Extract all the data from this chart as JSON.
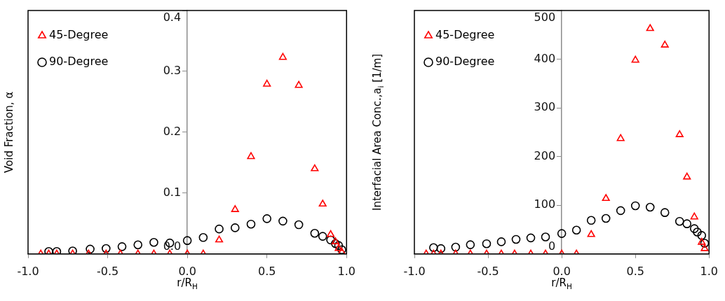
{
  "chart_data": [
    {
      "type": "scatter",
      "xlabel": "r/R$_{H}$",
      "ylabel": "Void Fraction, α",
      "xlim": [
        -1,
        1
      ],
      "ylim": [
        0,
        0.4
      ],
      "xticks": [
        {
          "value": -1,
          "label": "-1.0"
        },
        {
          "value": -0.5,
          "label": "-0.5"
        },
        {
          "value": 0,
          "label": "0.0"
        },
        0.5,
        {
          "value": 1,
          "label": "1.0"
        }
      ],
      "yticks": [
        {
          "value": 0,
          "label": "0.0"
        },
        0.1,
        0.2,
        0.3,
        0.4
      ],
      "grid": false,
      "legend": "top left",
      "series": [
        {
          "name": "45-Degree",
          "color": "#ff0000",
          "marker": "triangle",
          "x": [
            -0.92,
            -0.87,
            -0.82,
            -0.72,
            -0.62,
            -0.51,
            -0.42,
            -0.31,
            -0.21,
            -0.11,
            0,
            0.1,
            0.2,
            0.3,
            0.4,
            0.5,
            0.6,
            0.7,
            0.8,
            0.85,
            0.9,
            0.93,
            0.95,
            0.97
          ],
          "values": [
            0,
            0,
            0,
            0,
            0,
            0,
            0,
            0,
            0,
            0,
            0,
            0,
            0.023,
            0.073,
            0.16,
            0.279,
            0.323,
            0.277,
            0.14,
            0.082,
            0.032,
            0.02,
            0.009,
            0.003
          ]
        },
        {
          "name": "90-Degree",
          "color": "#000000",
          "marker": "circle",
          "x": [
            -0.87,
            -0.82,
            -0.72,
            -0.61,
            -0.51,
            -0.41,
            -0.31,
            -0.21,
            -0.11,
            0,
            0.1,
            0.2,
            0.3,
            0.4,
            0.5,
            0.6,
            0.7,
            0.8,
            0.85,
            0.9,
            0.93,
            0.95,
            0.97
          ],
          "values": [
            0.004,
            0.004,
            0.005,
            0.008,
            0.009,
            0.012,
            0.015,
            0.019,
            0.018,
            0.022,
            0.027,
            0.041,
            0.043,
            0.049,
            0.058,
            0.054,
            0.048,
            0.034,
            0.029,
            0.023,
            0.017,
            0.014,
            0.007
          ]
        }
      ]
    },
    {
      "type": "scatter",
      "xlabel": "r/R$_{H}$",
      "ylabel": "Interfacial Area Conc.,a$_{i}$ [1/m]",
      "xlim": [
        -1,
        1
      ],
      "ylim": [
        0,
        500
      ],
      "xticks": [
        {
          "value": -1,
          "label": "-1.0"
        },
        {
          "value": -0.5,
          "label": "-0.5"
        },
        {
          "value": 0,
          "label": "0.0"
        },
        0.5,
        {
          "value": 1,
          "label": "1.0"
        }
      ],
      "yticks": [
        0,
        100,
        200,
        300,
        400,
        500
      ],
      "grid": false,
      "legend": "top left",
      "series": [
        {
          "name": "45-Degree",
          "color": "#ff0000",
          "marker": "triangle",
          "x": [
            -0.92,
            -0.87,
            -0.82,
            -0.72,
            -0.62,
            -0.51,
            -0.41,
            -0.32,
            -0.21,
            -0.11,
            0,
            0.1,
            0.2,
            0.3,
            0.4,
            0.5,
            0.6,
            0.7,
            0.8,
            0.85,
            0.9,
            0.95,
            0.97
          ],
          "values": [
            0,
            0,
            0,
            0,
            0,
            0,
            0,
            0,
            0,
            0,
            0,
            0,
            40,
            114,
            237,
            398,
            463,
            429,
            245,
            158,
            76,
            24,
            11
          ]
        },
        {
          "name": "90-Degree",
          "color": "#000000",
          "marker": "circle",
          "x": [
            -0.87,
            -0.82,
            -0.72,
            -0.62,
            -0.51,
            -0.41,
            -0.31,
            -0.21,
            -0.11,
            0,
            0.1,
            0.2,
            0.3,
            0.4,
            0.5,
            0.6,
            0.7,
            0.8,
            0.85,
            0.9,
            0.92,
            0.95,
            0.97
          ],
          "values": [
            13,
            11,
            14,
            19,
            21,
            25,
            30,
            33,
            35,
            42,
            49,
            69,
            73,
            89,
            99,
            96,
            85,
            67,
            62,
            52,
            45,
            38,
            22
          ]
        }
      ]
    }
  ]
}
